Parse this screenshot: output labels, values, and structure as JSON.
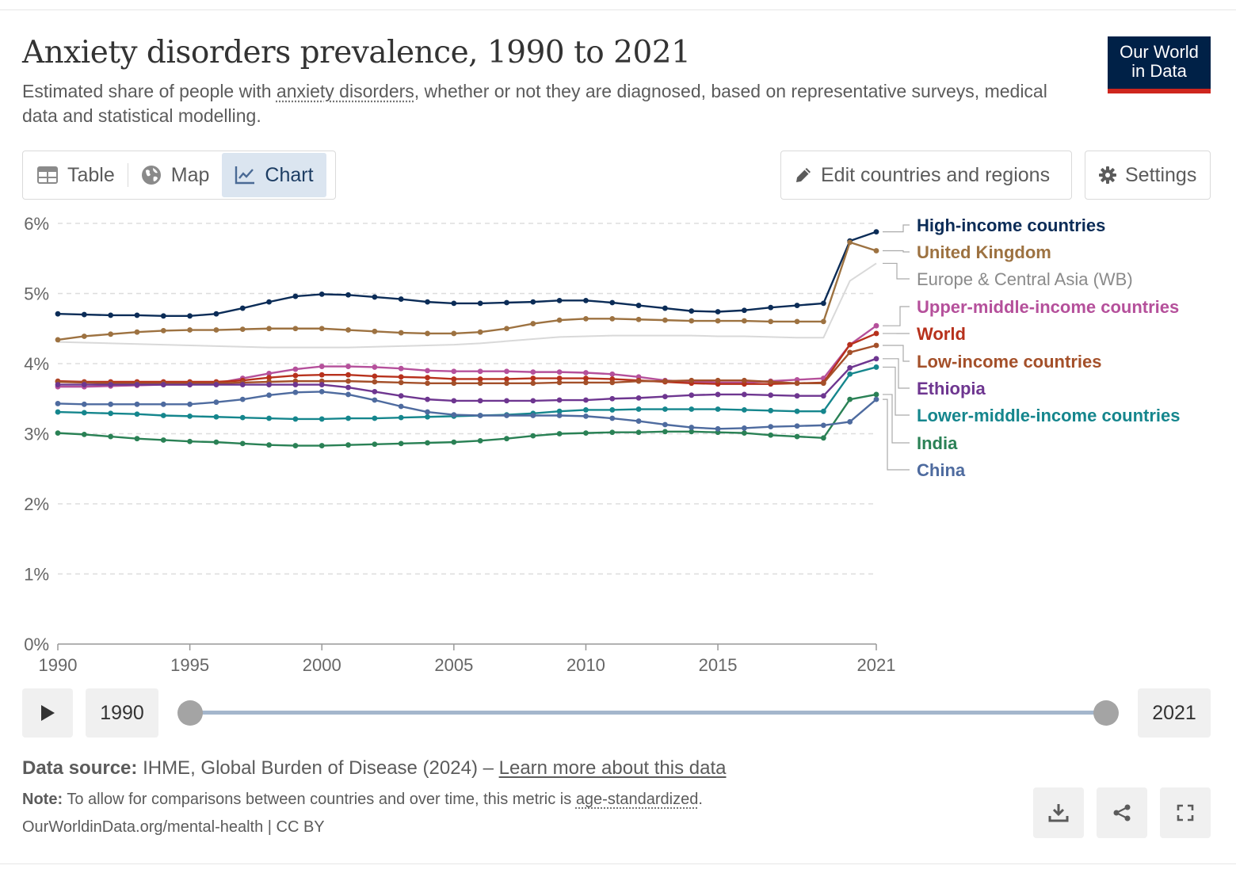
{
  "header": {
    "title": "Anxiety disorders prevalence, 1990 to 2021",
    "subtitle_pre": "Estimated share of people with ",
    "subtitle_link": "anxiety disorders",
    "subtitle_post": ", whether or not they are diagnosed, based on representative surveys, medical data and statistical modelling.",
    "logo_line1": "Our World",
    "logo_line2": "in Data"
  },
  "tabs": [
    {
      "label": "Table",
      "icon": "table-icon"
    },
    {
      "label": "Map",
      "icon": "globe-icon"
    },
    {
      "label": "Chart",
      "icon": "line-chart-icon"
    }
  ],
  "toolbar": {
    "edit_label": "Edit countries and regions",
    "settings_label": "Settings"
  },
  "timeline": {
    "start_year": "1990",
    "end_year": "2021",
    "play_icon": "play-icon"
  },
  "footer": {
    "source_label": "Data source:",
    "source_text": "IHME, Global Burden of Disease (2024) – ",
    "source_link": "Learn more about this data",
    "note_label": "Note:",
    "note_text": "To allow for comparisons between countries and over time, this metric is ",
    "note_link": "age-standardized",
    "note_end": ".",
    "attribution": "OurWorldinData.org/mental-health | CC BY"
  },
  "colors": {
    "accent": "#002147",
    "logo_stripe": "#ce261e"
  },
  "chart_data": {
    "type": "line",
    "yticks": [
      "0%",
      "1%",
      "2%",
      "3%",
      "4%",
      "5%",
      "6%"
    ],
    "ylim": [
      0,
      6
    ],
    "xlim": [
      1990,
      2021
    ],
    "xticks": [
      "1990",
      "1995",
      "2000",
      "2005",
      "2010",
      "2015",
      "2021"
    ],
    "x": [
      1990,
      1991,
      1992,
      1993,
      1994,
      1995,
      1996,
      1997,
      1998,
      1999,
      2000,
      2001,
      2002,
      2003,
      2004,
      2005,
      2006,
      2007,
      2008,
      2009,
      2010,
      2011,
      2012,
      2013,
      2014,
      2015,
      2016,
      2017,
      2018,
      2019,
      2020,
      2021
    ],
    "grid": "horizontal dashed",
    "series": [
      {
        "name": "High-income countries",
        "color": "#0b2c57",
        "bold": true,
        "values": [
          4.71,
          4.7,
          4.69,
          4.69,
          4.68,
          4.68,
          4.71,
          4.79,
          4.88,
          4.96,
          4.99,
          4.98,
          4.95,
          4.92,
          4.88,
          4.86,
          4.86,
          4.87,
          4.88,
          4.9,
          4.9,
          4.87,
          4.83,
          4.79,
          4.75,
          4.74,
          4.76,
          4.8,
          4.83,
          4.86,
          5.75,
          5.88
        ]
      },
      {
        "name": "United Kingdom",
        "color": "#9d7241",
        "bold": true,
        "values": [
          4.34,
          4.39,
          4.42,
          4.45,
          4.47,
          4.48,
          4.48,
          4.49,
          4.5,
          4.5,
          4.5,
          4.48,
          4.46,
          4.44,
          4.43,
          4.43,
          4.45,
          4.5,
          4.57,
          4.62,
          4.64,
          4.64,
          4.63,
          4.62,
          4.61,
          4.61,
          4.61,
          4.6,
          4.6,
          4.6,
          5.73,
          5.61
        ]
      },
      {
        "name": "Europe & Central Asia (WB)",
        "color": "#d9d9d9",
        "bold": false,
        "no_markers": true,
        "values": [
          4.31,
          4.3,
          4.29,
          4.28,
          4.27,
          4.26,
          4.25,
          4.24,
          4.23,
          4.23,
          4.23,
          4.23,
          4.24,
          4.25,
          4.26,
          4.27,
          4.29,
          4.32,
          4.35,
          4.38,
          4.39,
          4.4,
          4.4,
          4.4,
          4.4,
          4.39,
          4.39,
          4.38,
          4.37,
          4.37,
          5.18,
          5.43
        ]
      },
      {
        "name": "Upper-middle-income countries",
        "color": "#b5509b",
        "bold": true,
        "values": [
          3.67,
          3.67,
          3.68,
          3.69,
          3.7,
          3.7,
          3.72,
          3.79,
          3.86,
          3.92,
          3.96,
          3.96,
          3.95,
          3.93,
          3.9,
          3.89,
          3.89,
          3.89,
          3.88,
          3.88,
          3.87,
          3.85,
          3.81,
          3.76,
          3.74,
          3.73,
          3.73,
          3.75,
          3.77,
          3.79,
          4.27,
          4.54
        ]
      },
      {
        "name": "World",
        "color": "#b7311c",
        "bold": true,
        "values": [
          3.75,
          3.74,
          3.74,
          3.74,
          3.74,
          3.74,
          3.74,
          3.76,
          3.8,
          3.83,
          3.84,
          3.84,
          3.82,
          3.81,
          3.8,
          3.78,
          3.78,
          3.78,
          3.79,
          3.79,
          3.79,
          3.78,
          3.76,
          3.74,
          3.72,
          3.71,
          3.71,
          3.71,
          3.72,
          3.73,
          4.27,
          4.43
        ]
      },
      {
        "name": "Low-income countries",
        "color": "#a4502a",
        "bold": true,
        "values": [
          3.74,
          3.73,
          3.72,
          3.72,
          3.72,
          3.72,
          3.72,
          3.73,
          3.74,
          3.75,
          3.75,
          3.75,
          3.74,
          3.73,
          3.72,
          3.72,
          3.72,
          3.72,
          3.72,
          3.73,
          3.73,
          3.73,
          3.75,
          3.75,
          3.76,
          3.76,
          3.76,
          3.74,
          3.72,
          3.72,
          4.16,
          4.26
        ]
      },
      {
        "name": "Ethiopia",
        "color": "#6e3690",
        "bold": true,
        "values": [
          3.7,
          3.7,
          3.7,
          3.7,
          3.7,
          3.7,
          3.7,
          3.7,
          3.7,
          3.7,
          3.7,
          3.66,
          3.6,
          3.54,
          3.49,
          3.47,
          3.47,
          3.47,
          3.47,
          3.48,
          3.48,
          3.5,
          3.51,
          3.53,
          3.55,
          3.56,
          3.56,
          3.55,
          3.54,
          3.54,
          3.94,
          4.07
        ]
      },
      {
        "name": "Lower-middle-income countries",
        "color": "#15868d",
        "bold": true,
        "values": [
          3.31,
          3.3,
          3.29,
          3.28,
          3.26,
          3.25,
          3.24,
          3.23,
          3.22,
          3.21,
          3.21,
          3.22,
          3.22,
          3.23,
          3.24,
          3.25,
          3.26,
          3.27,
          3.29,
          3.32,
          3.34,
          3.34,
          3.35,
          3.35,
          3.35,
          3.35,
          3.34,
          3.33,
          3.32,
          3.32,
          3.85,
          3.95
        ]
      },
      {
        "name": "India",
        "color": "#2a8155",
        "bold": true,
        "values": [
          3.01,
          2.99,
          2.96,
          2.93,
          2.91,
          2.89,
          2.88,
          2.86,
          2.84,
          2.83,
          2.83,
          2.84,
          2.85,
          2.86,
          2.87,
          2.88,
          2.9,
          2.93,
          2.97,
          3.0,
          3.01,
          3.02,
          3.02,
          3.03,
          3.03,
          3.02,
          3.01,
          2.98,
          2.96,
          2.94,
          3.49,
          3.56
        ]
      },
      {
        "name": "China",
        "color": "#4e6b9f",
        "bold": true,
        "values": [
          3.43,
          3.42,
          3.42,
          3.42,
          3.42,
          3.42,
          3.45,
          3.49,
          3.55,
          3.59,
          3.6,
          3.56,
          3.48,
          3.39,
          3.31,
          3.27,
          3.26,
          3.26,
          3.26,
          3.26,
          3.25,
          3.22,
          3.18,
          3.13,
          3.09,
          3.07,
          3.08,
          3.1,
          3.11,
          3.12,
          3.17,
          3.49
        ]
      }
    ]
  }
}
